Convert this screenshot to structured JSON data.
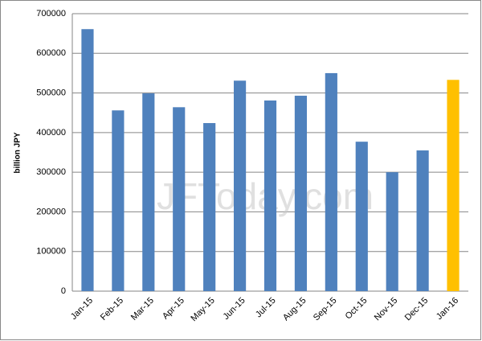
{
  "chart_data": {
    "type": "bar",
    "y_label": "billion JPY",
    "watermark": "JFToday.com",
    "categories": [
      "Jan-15",
      "Feb-15",
      "Mar-15",
      "Apr-15",
      "May-15",
      "Jun-15",
      "Jul-15",
      "Aug-15",
      "Sep-15",
      "Oct-15",
      "Nov-15",
      "Dec-15",
      "Jan-16"
    ],
    "values": [
      661000,
      456000,
      499000,
      464000,
      424000,
      531000,
      481000,
      493000,
      550000,
      377000,
      300000,
      355000,
      533000
    ],
    "colors": [
      "#4f81bd",
      "#4f81bd",
      "#4f81bd",
      "#4f81bd",
      "#4f81bd",
      "#4f81bd",
      "#4f81bd",
      "#4f81bd",
      "#4f81bd",
      "#4f81bd",
      "#4f81bd",
      "#4f81bd",
      "#ffc000"
    ],
    "ylim": [
      0,
      700000
    ],
    "yticks": [
      0,
      100000,
      200000,
      300000,
      400000,
      500000,
      600000,
      700000
    ],
    "grid": true
  }
}
